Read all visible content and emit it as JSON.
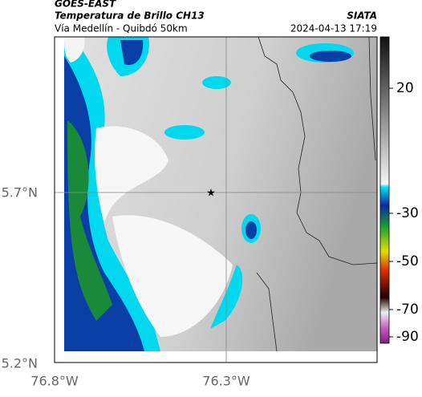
{
  "header": {
    "title": "GOES-EAST",
    "subtitle": "Temperatura de Brillo CH13",
    "source": "SIATA",
    "location": "Vía Medellín - Quibdó 50km",
    "datetime": "2024-04-13 17:19"
  },
  "map": {
    "lat_ticks": [
      "5.7°N",
      "5.2°N"
    ],
    "lon_ticks": [
      "76.8°W",
      "76.3°W"
    ]
  },
  "colorbar": {
    "ticks": [
      20,
      -30,
      -50,
      -70,
      -90
    ]
  }
}
